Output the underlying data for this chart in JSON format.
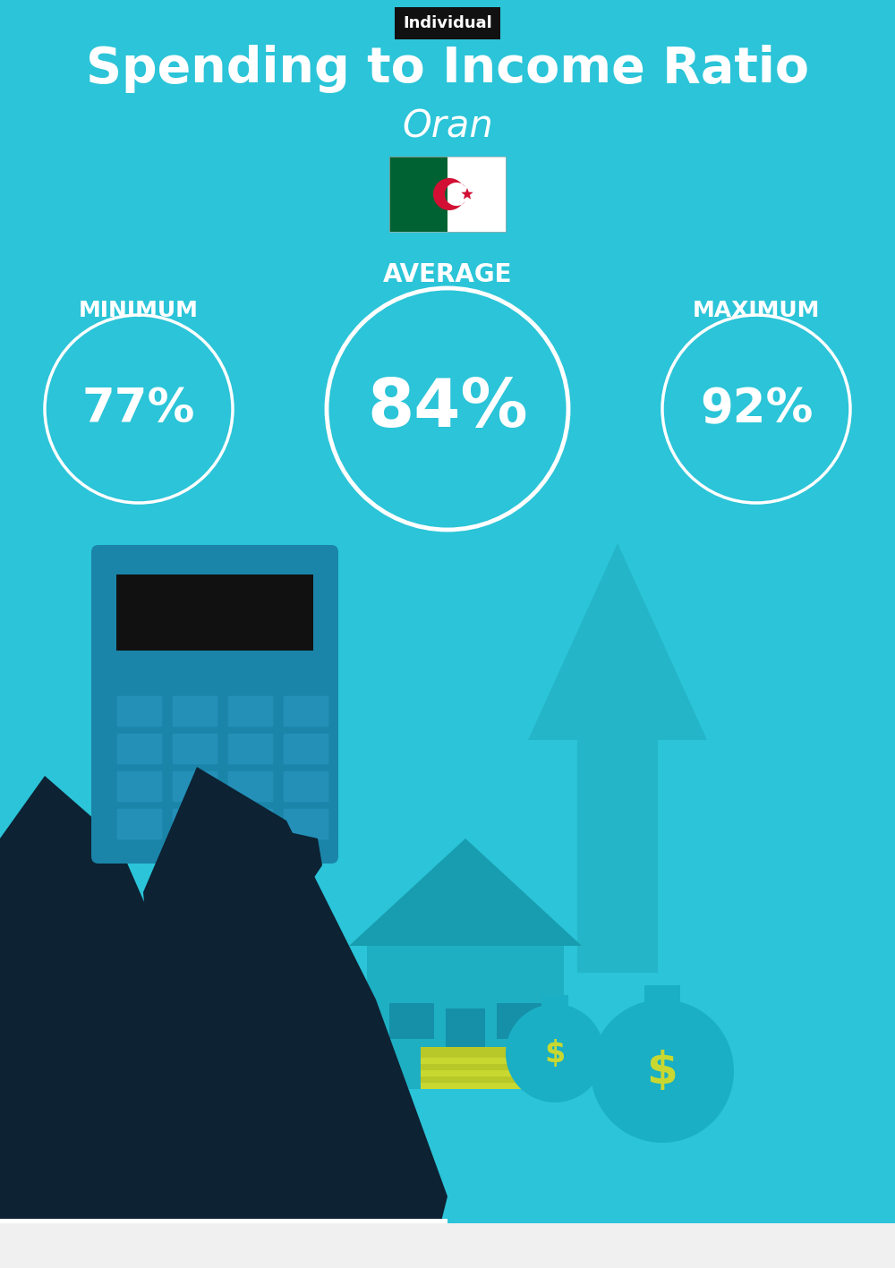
{
  "bg_color": "#2bc4d8",
  "title": "Spending to Income Ratio",
  "subtitle": "Oran",
  "tag_text": "Individual",
  "tag_bg": "#111111",
  "tag_text_color": "#ffffff",
  "title_color": "#ffffff",
  "subtitle_color": "#ffffff",
  "min_label": "MINIMUM",
  "avg_label": "AVERAGE",
  "max_label": "MAXIMUM",
  "min_value": "77%",
  "avg_value": "84%",
  "max_value": "92%",
  "label_color": "#ffffff",
  "value_color": "#ffffff",
  "circle_color": "#ffffff",
  "flag_green": "#006233",
  "flag_white": "#ffffff",
  "flag_red": "#d21034",
  "title_fontsize": 40,
  "subtitle_fontsize": 30,
  "tag_fontsize": 13,
  "avg_label_fontsize": 20,
  "side_label_fontsize": 18,
  "min_value_fontsize": 38,
  "avg_value_fontsize": 54,
  "max_value_fontsize": 38,
  "arrow_color": "#25b5c8",
  "house_color": "#1eafc2",
  "house_roof_color": "#189db0",
  "dark_color": "#0d2233",
  "calc_color": "#1a85a8",
  "bag_color": "#1aafc4",
  "shadow_color": "#189ab0"
}
